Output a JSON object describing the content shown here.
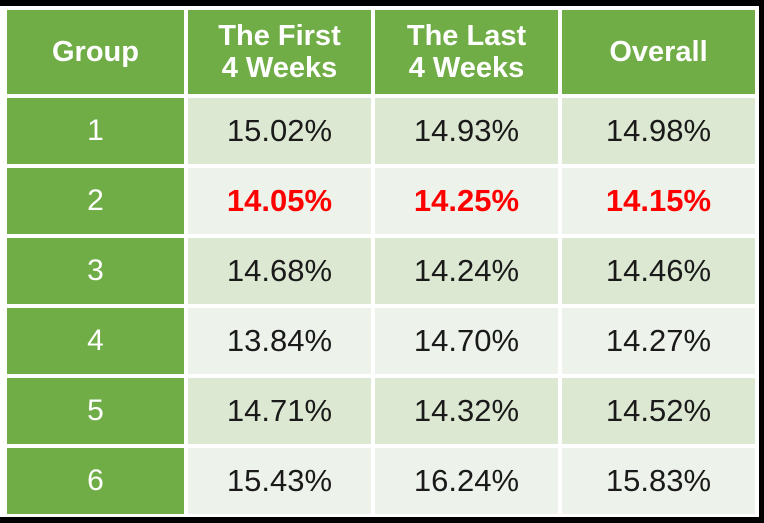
{
  "table": {
    "headers": [
      "Group",
      "The First\n4 Weeks",
      "The Last\n4 Weeks",
      "Overall"
    ],
    "rows": [
      [
        "1",
        "15.02%",
        "14.93%",
        "14.98%"
      ],
      [
        "2",
        "14.05%",
        "14.25%",
        "14.15%"
      ],
      [
        "3",
        "14.68%",
        "14.24%",
        "14.46%"
      ],
      [
        "4",
        "13.84%",
        "14.70%",
        "14.27%"
      ],
      [
        "5",
        "14.71%",
        "14.32%",
        "14.52%"
      ],
      [
        "6",
        "15.43%",
        "16.24%",
        "15.83%"
      ]
    ],
    "highlighted_row_group": "2"
  },
  "colors": {
    "header_green": "#70AD47",
    "band_dark_green": "#DCE8D2",
    "band_light_green": "#EDF3EA",
    "highlight_red": "#FF0000",
    "header_text": "#FFFFFF",
    "body_text": "#1A1A1A",
    "frame_black": "#000000"
  },
  "chart_data": {
    "type": "table",
    "title": "",
    "columns": [
      "Group",
      "The First 4 Weeks",
      "The Last 4 Weeks",
      "Overall"
    ],
    "rows": [
      [
        "1",
        "15.02%",
        "14.93%",
        "14.98%"
      ],
      [
        "2",
        "14.05%",
        "14.25%",
        "14.15%"
      ],
      [
        "3",
        "14.68%",
        "14.24%",
        "14.46%"
      ],
      [
        "4",
        "13.84%",
        "14.70%",
        "14.27%"
      ],
      [
        "5",
        "14.71%",
        "14.32%",
        "14.52%"
      ],
      [
        "6",
        "15.43%",
        "16.24%",
        "15.83%"
      ]
    ],
    "highlighted_row_group": "2",
    "highlight_color": "#FF0000",
    "notes": "Percentages by group for first 4 weeks, last 4 weeks, and overall; group 2 row shown in bold red"
  }
}
